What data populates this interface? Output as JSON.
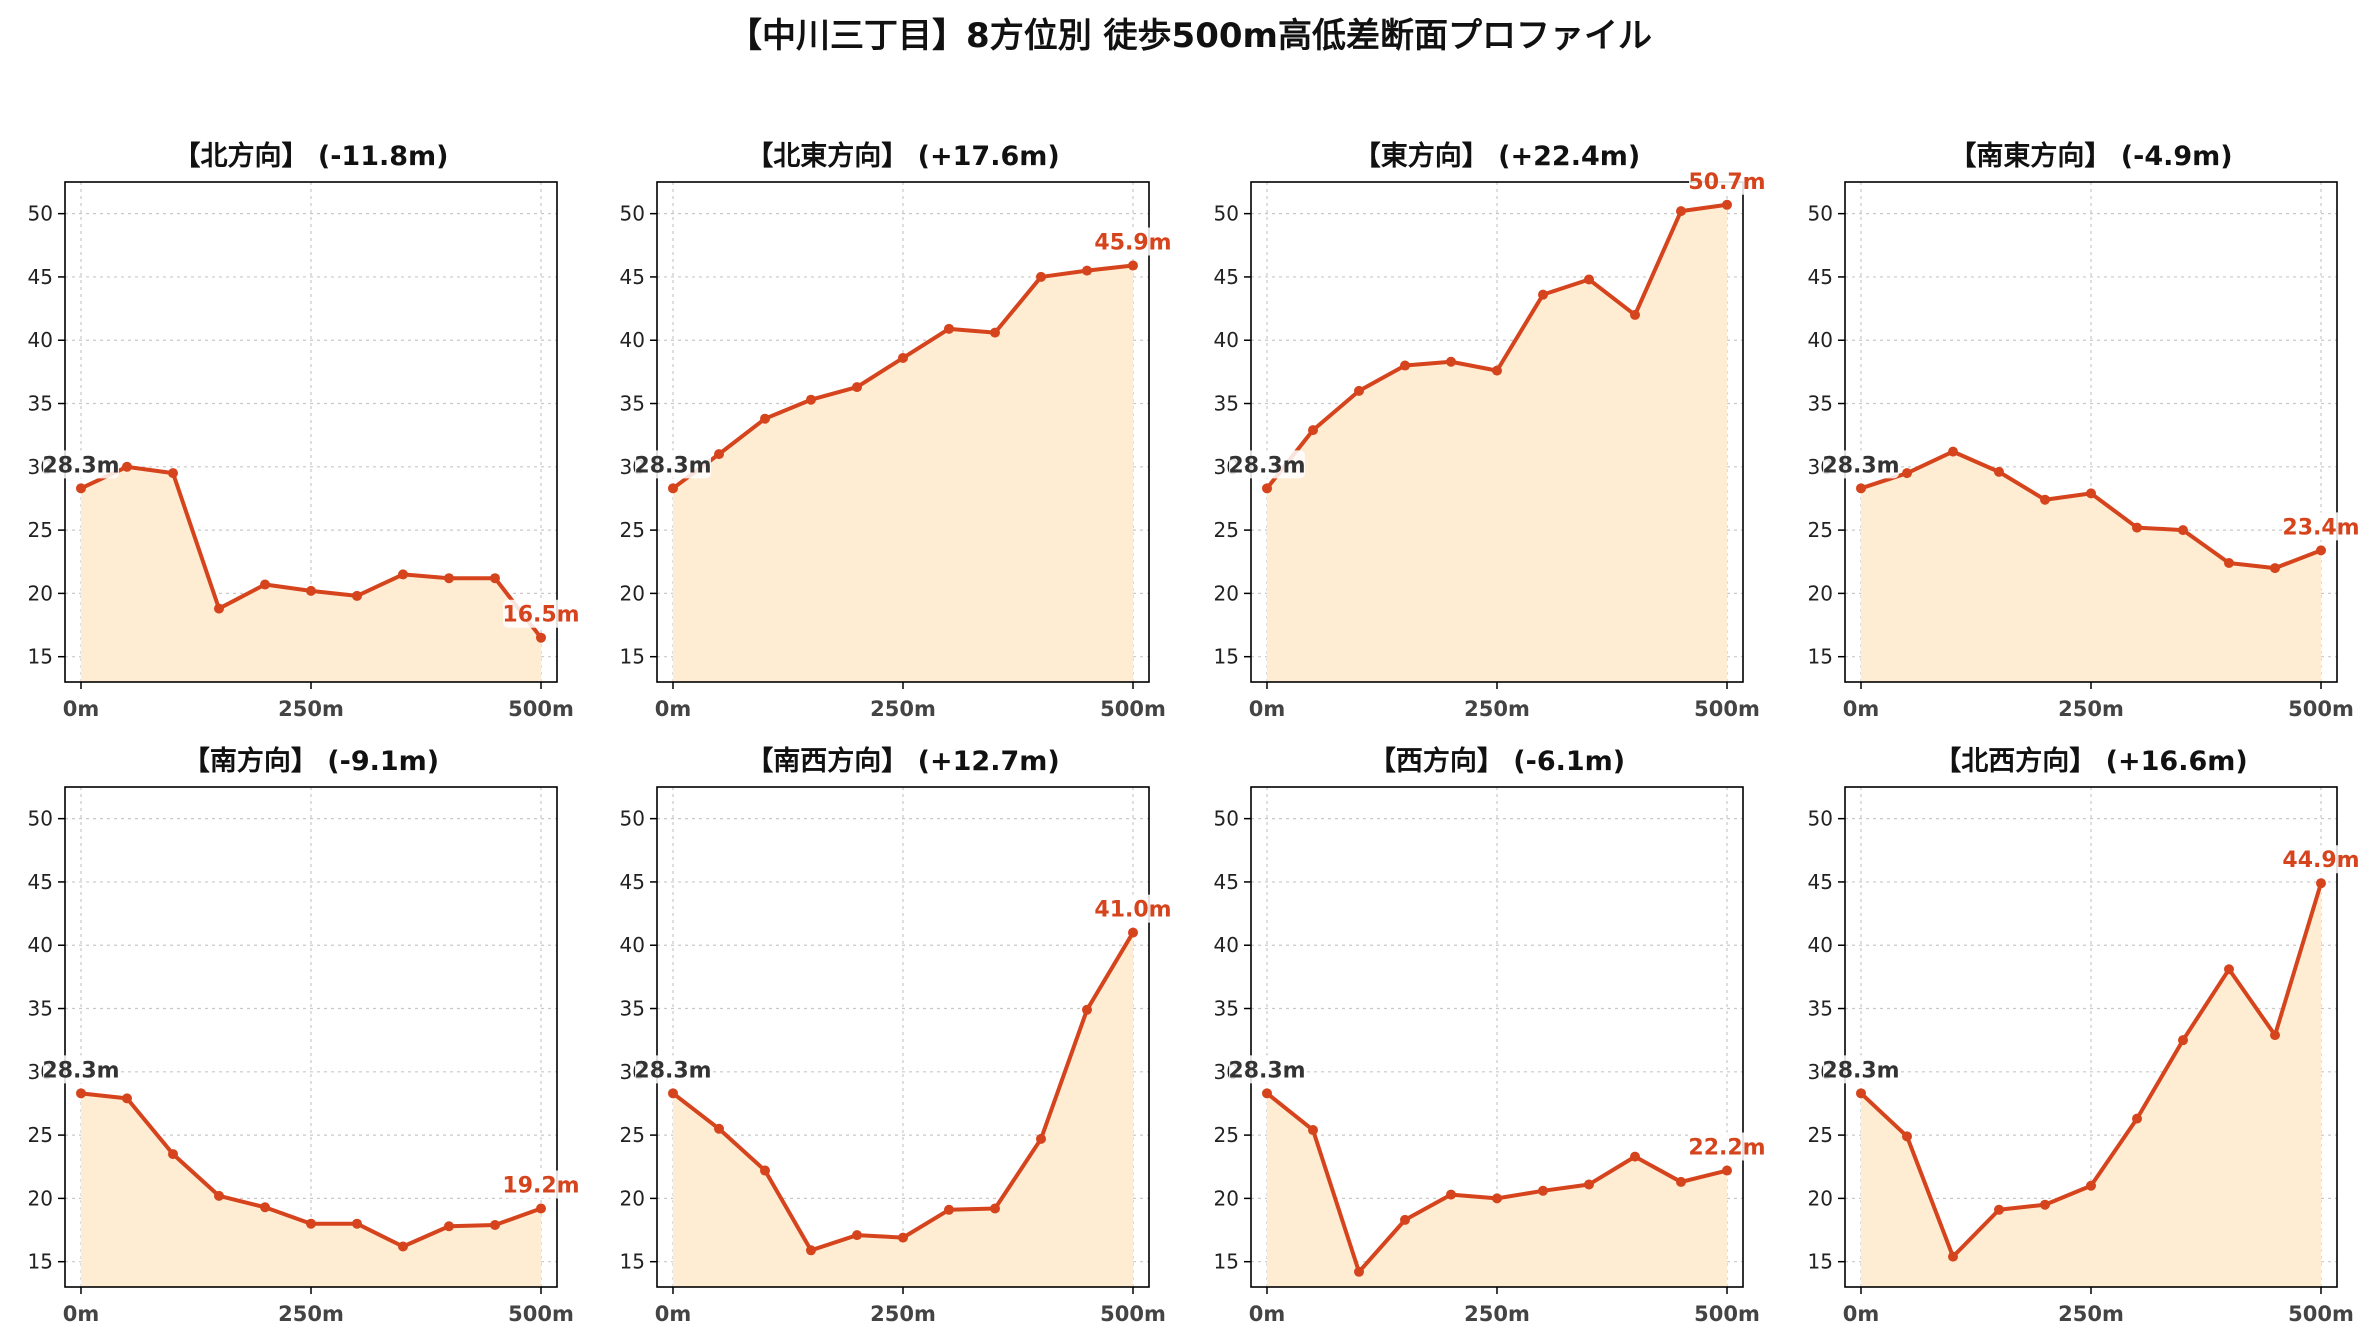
{
  "title": "【中川三丁目】8方位別 徒歩500m高低差断面プロファイル",
  "colors": {
    "line": "#d5441c",
    "fill": "#feecd3",
    "grid": "#c9c9c9"
  },
  "chart_data": [
    {
      "type": "area",
      "title": "【北方向】 (-11.8m)",
      "x": [
        0,
        50,
        100,
        150,
        200,
        250,
        300,
        350,
        400,
        450,
        500
      ],
      "values": [
        28.3,
        30.0,
        29.5,
        18.8,
        20.7,
        20.2,
        19.8,
        21.5,
        21.2,
        21.2,
        16.5
      ],
      "xticks": [
        "0m",
        "250m",
        "500m"
      ],
      "ylim": [
        13,
        52.5
      ],
      "yticks": [
        15,
        20,
        25,
        30,
        35,
        40,
        45,
        50
      ],
      "start_label": "28.3m",
      "end_label": "16.5m",
      "grid": true
    },
    {
      "type": "area",
      "title": "【北東方向】 (+17.6m)",
      "x": [
        0,
        50,
        100,
        150,
        200,
        250,
        300,
        350,
        400,
        450,
        500
      ],
      "values": [
        28.3,
        31.0,
        33.8,
        35.3,
        36.3,
        38.6,
        40.9,
        40.6,
        45.0,
        45.5,
        45.9
      ],
      "xticks": [
        "0m",
        "250m",
        "500m"
      ],
      "ylim": [
        13,
        52.5
      ],
      "yticks": [
        15,
        20,
        25,
        30,
        35,
        40,
        45,
        50
      ],
      "start_label": "28.3m",
      "end_label": "45.9m",
      "grid": true
    },
    {
      "type": "area",
      "title": "【東方向】 (+22.4m)",
      "x": [
        0,
        50,
        100,
        150,
        200,
        250,
        300,
        350,
        400,
        450,
        500
      ],
      "values": [
        28.3,
        32.9,
        36.0,
        38.0,
        38.3,
        37.6,
        43.6,
        44.8,
        42.0,
        50.2,
        50.7
      ],
      "xticks": [
        "0m",
        "250m",
        "500m"
      ],
      "ylim": [
        13,
        52.5
      ],
      "yticks": [
        15,
        20,
        25,
        30,
        35,
        40,
        45,
        50
      ],
      "start_label": "28.3m",
      "end_label": "50.7m",
      "grid": true
    },
    {
      "type": "area",
      "title": "【南東方向】 (-4.9m)",
      "x": [
        0,
        50,
        100,
        150,
        200,
        250,
        300,
        350,
        400,
        450,
        500
      ],
      "values": [
        28.3,
        29.5,
        31.2,
        29.6,
        27.4,
        27.9,
        25.2,
        25.0,
        22.4,
        22.0,
        23.4
      ],
      "xticks": [
        "0m",
        "250m",
        "500m"
      ],
      "ylim": [
        13,
        52.5
      ],
      "yticks": [
        15,
        20,
        25,
        30,
        35,
        40,
        45,
        50
      ],
      "start_label": "28.3m",
      "end_label": "23.4m",
      "grid": true
    },
    {
      "type": "area",
      "title": "【南方向】 (-9.1m)",
      "x": [
        0,
        50,
        100,
        150,
        200,
        250,
        300,
        350,
        400,
        450,
        500
      ],
      "values": [
        28.3,
        27.9,
        23.5,
        20.2,
        19.3,
        18.0,
        18.0,
        16.2,
        17.8,
        17.9,
        19.2
      ],
      "xticks": [
        "0m",
        "250m",
        "500m"
      ],
      "ylim": [
        13,
        52.5
      ],
      "yticks": [
        15,
        20,
        25,
        30,
        35,
        40,
        45,
        50
      ],
      "start_label": "28.3m",
      "end_label": "19.2m",
      "grid": true
    },
    {
      "type": "area",
      "title": "【南西方向】 (+12.7m)",
      "x": [
        0,
        50,
        100,
        150,
        200,
        250,
        300,
        350,
        400,
        450,
        500
      ],
      "values": [
        28.3,
        25.5,
        22.2,
        15.9,
        17.1,
        16.9,
        19.1,
        19.2,
        24.7,
        34.9,
        41.0
      ],
      "xticks": [
        "0m",
        "250m",
        "500m"
      ],
      "ylim": [
        13,
        52.5
      ],
      "yticks": [
        15,
        20,
        25,
        30,
        35,
        40,
        45,
        50
      ],
      "start_label": "28.3m",
      "end_label": "41.0m",
      "grid": true
    },
    {
      "type": "area",
      "title": "【西方向】 (-6.1m)",
      "x": [
        0,
        50,
        100,
        150,
        200,
        250,
        300,
        350,
        400,
        450,
        500
      ],
      "values": [
        28.3,
        25.4,
        14.2,
        18.3,
        20.3,
        20.0,
        20.6,
        21.1,
        23.3,
        21.3,
        22.2
      ],
      "xticks": [
        "0m",
        "250m",
        "500m"
      ],
      "ylim": [
        13,
        52.5
      ],
      "yticks": [
        15,
        20,
        25,
        30,
        35,
        40,
        45,
        50
      ],
      "start_label": "28.3m",
      "end_label": "22.2m",
      "grid": true
    },
    {
      "type": "area",
      "title": "【北西方向】 (+16.6m)",
      "x": [
        0,
        50,
        100,
        150,
        200,
        250,
        300,
        350,
        400,
        450,
        500
      ],
      "values": [
        28.3,
        24.9,
        15.4,
        19.1,
        19.5,
        21.0,
        26.3,
        32.5,
        38.1,
        32.9,
        44.9
      ],
      "xticks": [
        "0m",
        "250m",
        "500m"
      ],
      "ylim": [
        13,
        52.5
      ],
      "yticks": [
        15,
        20,
        25,
        30,
        35,
        40,
        45,
        50
      ],
      "start_label": "28.3m",
      "end_label": "44.9m",
      "grid": true
    }
  ]
}
